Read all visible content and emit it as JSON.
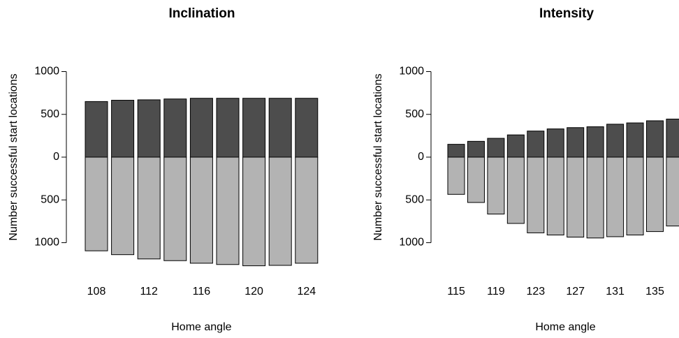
{
  "chart_data": [
    {
      "type": "bar",
      "title": "Inclination",
      "x_label": "Home angle",
      "y_label": "Number successful start locations",
      "categories": [
        "108",
        null,
        "112",
        null,
        "116",
        null,
        "120",
        null,
        "124"
      ],
      "series": [
        {
          "color": "#4d4d4d",
          "values": [
            650,
            665,
            670,
            680,
            688,
            688,
            688,
            688,
            688
          ]
        },
        {
          "color": "#b3b3b3",
          "values": [
            -1095,
            -1140,
            -1190,
            -1210,
            -1240,
            -1255,
            -1270,
            -1265,
            -1240
          ]
        }
      ],
      "ylim": [
        -1350,
        1100
      ],
      "yticks": [
        {
          "value": -1000,
          "label": "1000"
        },
        {
          "value": -500,
          "label": "500"
        },
        0,
        500,
        1000
      ]
    },
    {
      "type": "bar",
      "title": "Intensity",
      "x_label": "Home angle",
      "y_label": "Number successful start locations",
      "categories": [
        "115",
        null,
        "119",
        null,
        "123",
        null,
        "127",
        null,
        "131",
        null,
        "135",
        null
      ],
      "series": [
        {
          "color": "#4d4d4d",
          "values": [
            150,
            185,
            220,
            260,
            305,
            330,
            345,
            355,
            385,
            400,
            425,
            445
          ]
        },
        {
          "color": "#b3b3b3",
          "values": [
            -435,
            -530,
            -665,
            -775,
            -885,
            -910,
            -935,
            -945,
            -930,
            -910,
            -870,
            -805
          ]
        }
      ],
      "ylim": [
        -1350,
        1100
      ],
      "yticks": [
        {
          "value": -1000,
          "label": "1000"
        },
        {
          "value": -500,
          "label": "500"
        },
        0,
        500,
        1000
      ]
    }
  ]
}
